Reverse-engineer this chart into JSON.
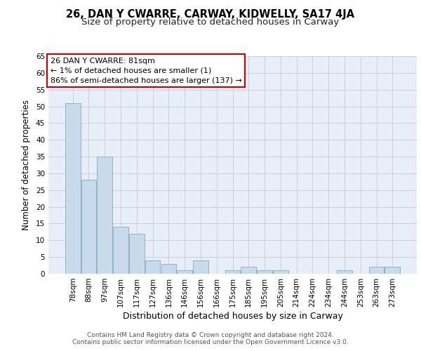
{
  "title": "26, DAN Y CWARRE, CARWAY, KIDWELLY, SA17 4JA",
  "subtitle": "Size of property relative to detached houses in Carway",
  "xlabel": "Distribution of detached houses by size in Carway",
  "ylabel": "Number of detached properties",
  "categories": [
    "78sqm",
    "88sqm",
    "97sqm",
    "107sqm",
    "117sqm",
    "127sqm",
    "136sqm",
    "146sqm",
    "156sqm",
    "166sqm",
    "175sqm",
    "185sqm",
    "195sqm",
    "205sqm",
    "214sqm",
    "224sqm",
    "234sqm",
    "244sqm",
    "253sqm",
    "263sqm",
    "273sqm"
  ],
  "values": [
    51,
    28,
    35,
    14,
    12,
    4,
    3,
    1,
    4,
    0,
    1,
    2,
    1,
    1,
    0,
    0,
    0,
    1,
    0,
    2,
    2
  ],
  "bar_color": "#c9daea",
  "bar_edge_color": "#8ab4cc",
  "annotation_box_text": "26 DAN Y CWARRE: 81sqm\n← 1% of detached houses are smaller (1)\n86% of semi-detached houses are larger (137) →",
  "annotation_box_color": "white",
  "annotation_box_edge_color": "#cc0000",
  "ylim": [
    0,
    65
  ],
  "yticks": [
    0,
    5,
    10,
    15,
    20,
    25,
    30,
    35,
    40,
    45,
    50,
    55,
    60,
    65
  ],
  "grid_color": "#c8d0dc",
  "bg_color": "#e8eef8",
  "footer_text": "Contains HM Land Registry data © Crown copyright and database right 2024.\nContains public sector information licensed under the Open Government Licence v3.0.",
  "title_fontsize": 10.5,
  "subtitle_fontsize": 9.5,
  "xlabel_fontsize": 9,
  "ylabel_fontsize": 8.5,
  "tick_fontsize": 7.5,
  "annotation_fontsize": 8,
  "footer_fontsize": 6.5
}
